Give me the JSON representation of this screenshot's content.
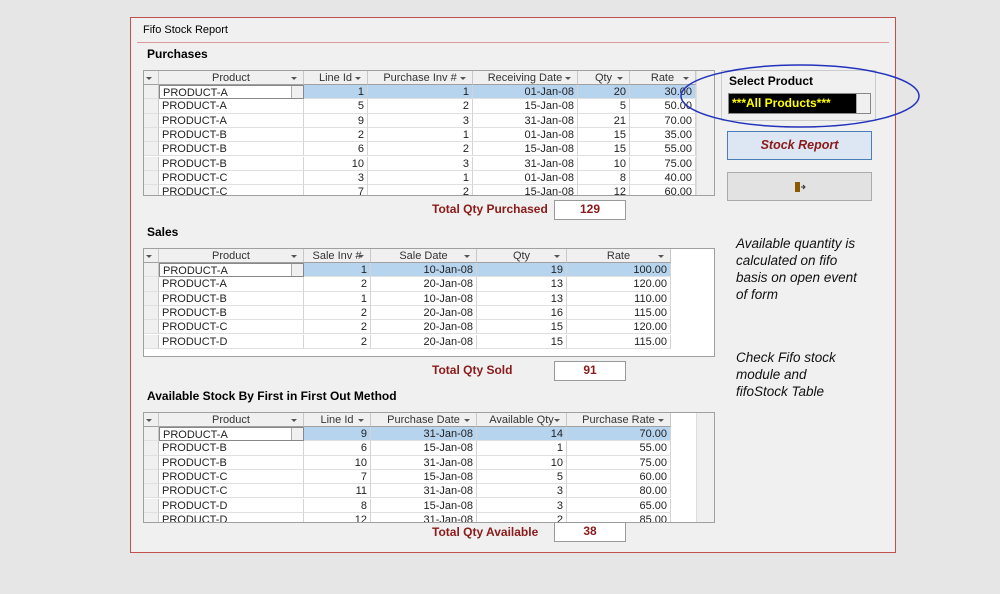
{
  "window": {
    "title": "Fifo Stock Report"
  },
  "purchases": {
    "label": "Purchases",
    "columns": [
      "Product",
      "Line Id",
      "Purchase Inv #",
      "Receiving Date",
      "Qty",
      "Rate"
    ],
    "rows": [
      [
        "PRODUCT-A",
        "1",
        "1",
        "01-Jan-08",
        "20",
        "30.00"
      ],
      [
        "PRODUCT-A",
        "5",
        "2",
        "15-Jan-08",
        "5",
        "50.00"
      ],
      [
        "PRODUCT-A",
        "9",
        "3",
        "31-Jan-08",
        "21",
        "70.00"
      ],
      [
        "PRODUCT-B",
        "2",
        "1",
        "01-Jan-08",
        "15",
        "35.00"
      ],
      [
        "PRODUCT-B",
        "6",
        "2",
        "15-Jan-08",
        "15",
        "55.00"
      ],
      [
        "PRODUCT-B",
        "10",
        "3",
        "31-Jan-08",
        "10",
        "75.00"
      ],
      [
        "PRODUCT-C",
        "3",
        "1",
        "01-Jan-08",
        "8",
        "40.00"
      ],
      [
        "PRODUCT-C",
        "7",
        "2",
        "15-Jan-08",
        "12",
        "60.00"
      ]
    ],
    "total": {
      "label": "Total Qty Purchased",
      "value": "129"
    }
  },
  "sales": {
    "label": "Sales",
    "columns": [
      "Product",
      "Sale Inv #",
      "Sale Date",
      "Qty",
      "Rate"
    ],
    "rows": [
      [
        "PRODUCT-A",
        "1",
        "10-Jan-08",
        "19",
        "100.00"
      ],
      [
        "PRODUCT-A",
        "2",
        "20-Jan-08",
        "13",
        "120.00"
      ],
      [
        "PRODUCT-B",
        "1",
        "10-Jan-08",
        "13",
        "110.00"
      ],
      [
        "PRODUCT-B",
        "2",
        "20-Jan-08",
        "16",
        "115.00"
      ],
      [
        "PRODUCT-C",
        "2",
        "20-Jan-08",
        "15",
        "120.00"
      ],
      [
        "PRODUCT-D",
        "2",
        "20-Jan-08",
        "15",
        "115.00"
      ]
    ],
    "total": {
      "label": "Total Qty Sold",
      "value": "91"
    }
  },
  "available": {
    "label": "Available Stock By First in First Out Method",
    "columns": [
      "Product",
      "Line Id",
      "Purchase  Date",
      "Available Qty",
      "Purchase Rate"
    ],
    "rows": [
      [
        "PRODUCT-A",
        "9",
        "31-Jan-08",
        "14",
        "70.00"
      ],
      [
        "PRODUCT-B",
        "6",
        "15-Jan-08",
        "1",
        "55.00"
      ],
      [
        "PRODUCT-B",
        "10",
        "31-Jan-08",
        "10",
        "75.00"
      ],
      [
        "PRODUCT-C",
        "7",
        "15-Jan-08",
        "5",
        "60.00"
      ],
      [
        "PRODUCT-C",
        "11",
        "31-Jan-08",
        "3",
        "80.00"
      ],
      [
        "PRODUCT-D",
        "8",
        "15-Jan-08",
        "3",
        "65.00"
      ],
      [
        "PRODUCT-D",
        "12",
        "31-Jan-08",
        "2",
        "85.00"
      ]
    ],
    "total": {
      "label": "Total Qty Available",
      "value": "38"
    }
  },
  "select_product": {
    "label": "Select Product",
    "value": "***All Products***"
  },
  "buttons": {
    "stock_report": "Stock Report"
  },
  "notes": [
    [
      "Available quantity is",
      "calculated on fifo",
      "basis on open event",
      "of form"
    ],
    [
      "Check Fifo stock",
      "module and",
      "fifoStock Table"
    ]
  ]
}
